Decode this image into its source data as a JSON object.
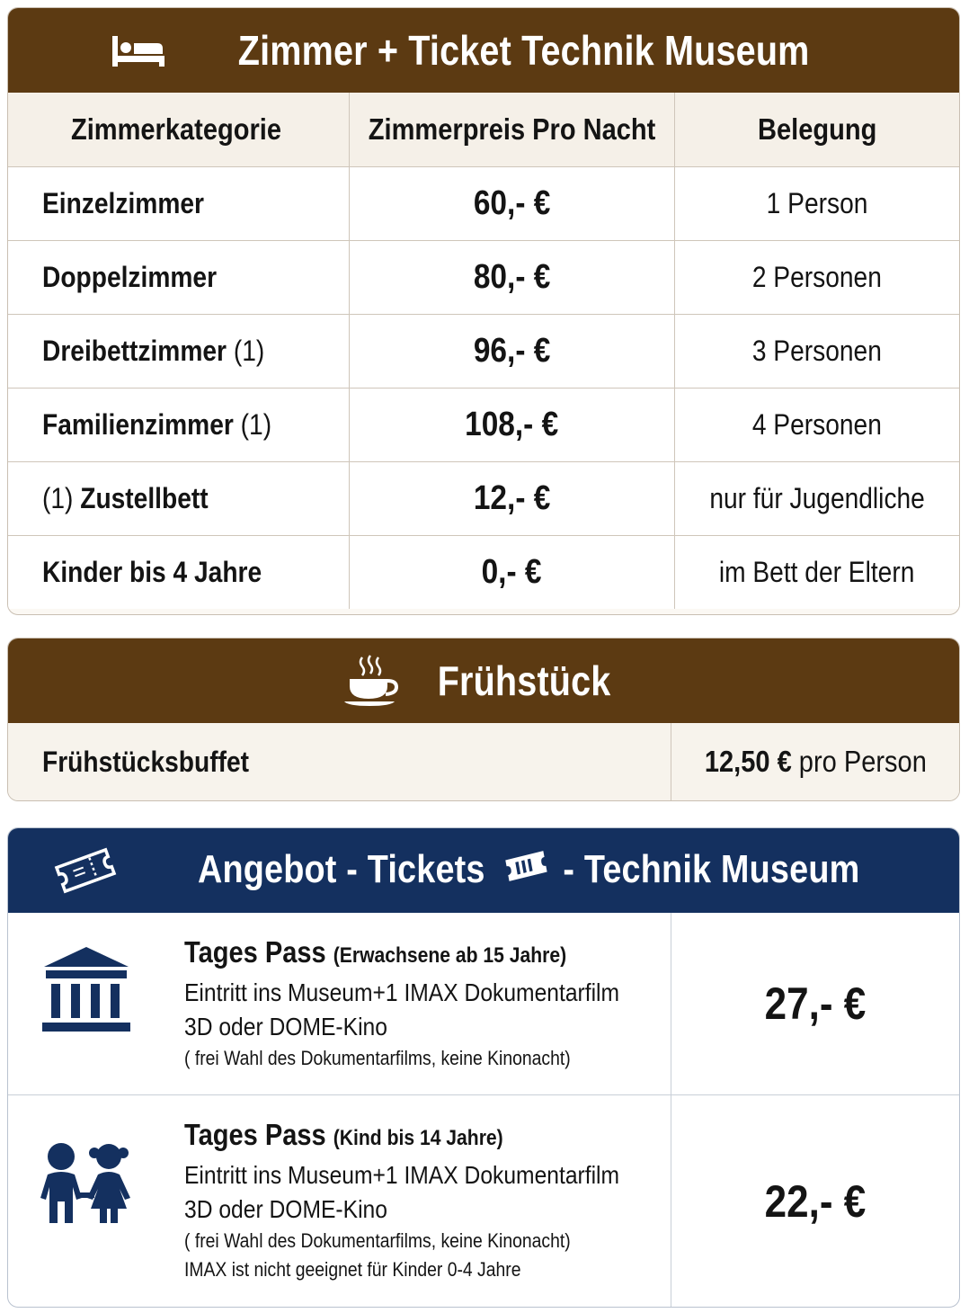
{
  "rooms": {
    "title": "Zimmer + Ticket Technik Museum",
    "columns": [
      "Zimmerkategorie",
      "Zimmerpreis Pro Nacht",
      "Belegung"
    ],
    "rows": [
      {
        "pre": "",
        "name": "Einzelzimmer",
        "suffix": "",
        "price": "60,- €",
        "occupancy": "1 Person"
      },
      {
        "pre": "",
        "name": "Doppelzimmer",
        "suffix": "",
        "price": "80,- €",
        "occupancy": "2 Personen"
      },
      {
        "pre": "",
        "name": "Dreibettzimmer",
        "suffix": " (1)",
        "price": "96,- €",
        "occupancy": "3 Personen"
      },
      {
        "pre": "",
        "name": "Familienzimmer",
        "suffix": " (1)",
        "price": "108,- €",
        "occupancy": "4 Personen"
      },
      {
        "pre": "(1) ",
        "name": "Zustellbett",
        "suffix": "",
        "price": "12,- €",
        "occupancy": "nur für Jugendliche"
      },
      {
        "pre": "",
        "name": "Kinder bis 4 Jahre",
        "suffix": "",
        "price": "0,- €",
        "occupancy": "im Bett der Eltern"
      }
    ]
  },
  "breakfast": {
    "title": "Frühstück",
    "item": "Frühstücksbuffet",
    "price": "12,50 €",
    "unit": " pro Person"
  },
  "tickets": {
    "title_part1": "Angebot - Tickets",
    "title_part2": "- Technik Museum",
    "offers": [
      {
        "name": "Tages Pass",
        "audience": "(Erwachsene ab 15 Jahre)",
        "line1": "Eintritt ins Museum+1 IMAX Dokumentarfilm",
        "line2": "3D oder DOME-Kino",
        "note1": "( frei Wahl des Dokumentarfilms, keine Kinonacht)",
        "note2": "",
        "price": "27,- €",
        "icon": "museum-building-icon"
      },
      {
        "name": "Tages Pass",
        "audience": "(Kind bis 14 Jahre)",
        "line1": "Eintritt ins Museum+1 IMAX Dokumentarfilm",
        "line2": "3D oder DOME-Kino",
        "note1": "( frei Wahl des Dokumentarfilms, keine Kinonacht)",
        "note2": "IMAX ist nicht geeignet für Kinder 0-4 Jahre",
        "price": "22,- €",
        "icon": "children-icon"
      }
    ]
  },
  "colors": {
    "brown": "#5c3a12",
    "navy": "#14305f"
  }
}
